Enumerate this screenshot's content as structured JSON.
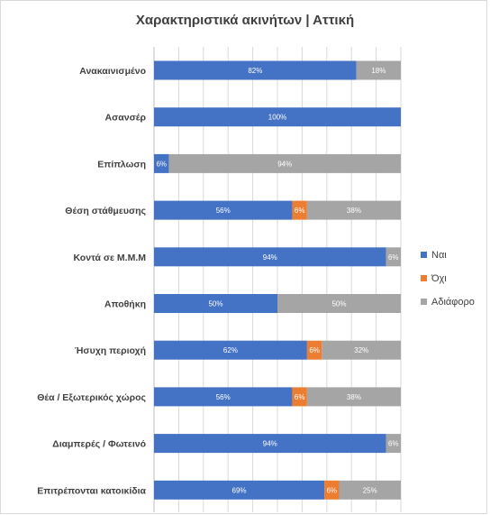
{
  "chart_data": {
    "type": "bar",
    "orientation": "horizontal",
    "stacked": "percent",
    "title": "Χαρακτηριστικά ακινήτων | Αττική",
    "xlabel": "",
    "ylabel": "",
    "xlim": [
      0,
      100
    ],
    "grid": true,
    "legend_position": "right",
    "categories": [
      "Ανακαινισμένο",
      "Ασανσέρ",
      "Επίπλωση",
      "Θέση στάθμευσης",
      "Κοντά σε Μ.Μ.Μ",
      "Αποθήκη",
      "Ήσυχη περιοχή",
      "Θέα / Εξωτερικός χώρος",
      "Διαμπερές / Φωτεινό",
      "Επιτρέπονται κατοικίδια"
    ],
    "series": [
      {
        "name": "Ναι",
        "color": "#4472c4",
        "values": [
          82,
          100,
          6,
          56,
          94,
          50,
          62,
          56,
          94,
          69
        ],
        "labels": [
          "82%",
          "100%",
          "6%",
          "56%",
          "94%",
          "50%",
          "62%",
          "56%",
          "94%",
          "69%"
        ]
      },
      {
        "name": "Όχι",
        "color": "#ed7d31",
        "values": [
          0,
          0,
          0,
          6,
          0,
          0,
          6,
          6,
          0,
          6
        ],
        "labels": [
          "",
          "",
          "",
          "6%",
          "",
          "",
          "6%",
          "6%",
          "",
          "6%"
        ]
      },
      {
        "name": "Αδιάφορο",
        "color": "#a5a5a5",
        "values": [
          18,
          0,
          94,
          38,
          6,
          50,
          32,
          38,
          6,
          25
        ],
        "labels": [
          "18%",
          "",
          "94%",
          "38%",
          "6%",
          "50%",
          "32%",
          "38%",
          "6%",
          "25%"
        ]
      }
    ]
  }
}
